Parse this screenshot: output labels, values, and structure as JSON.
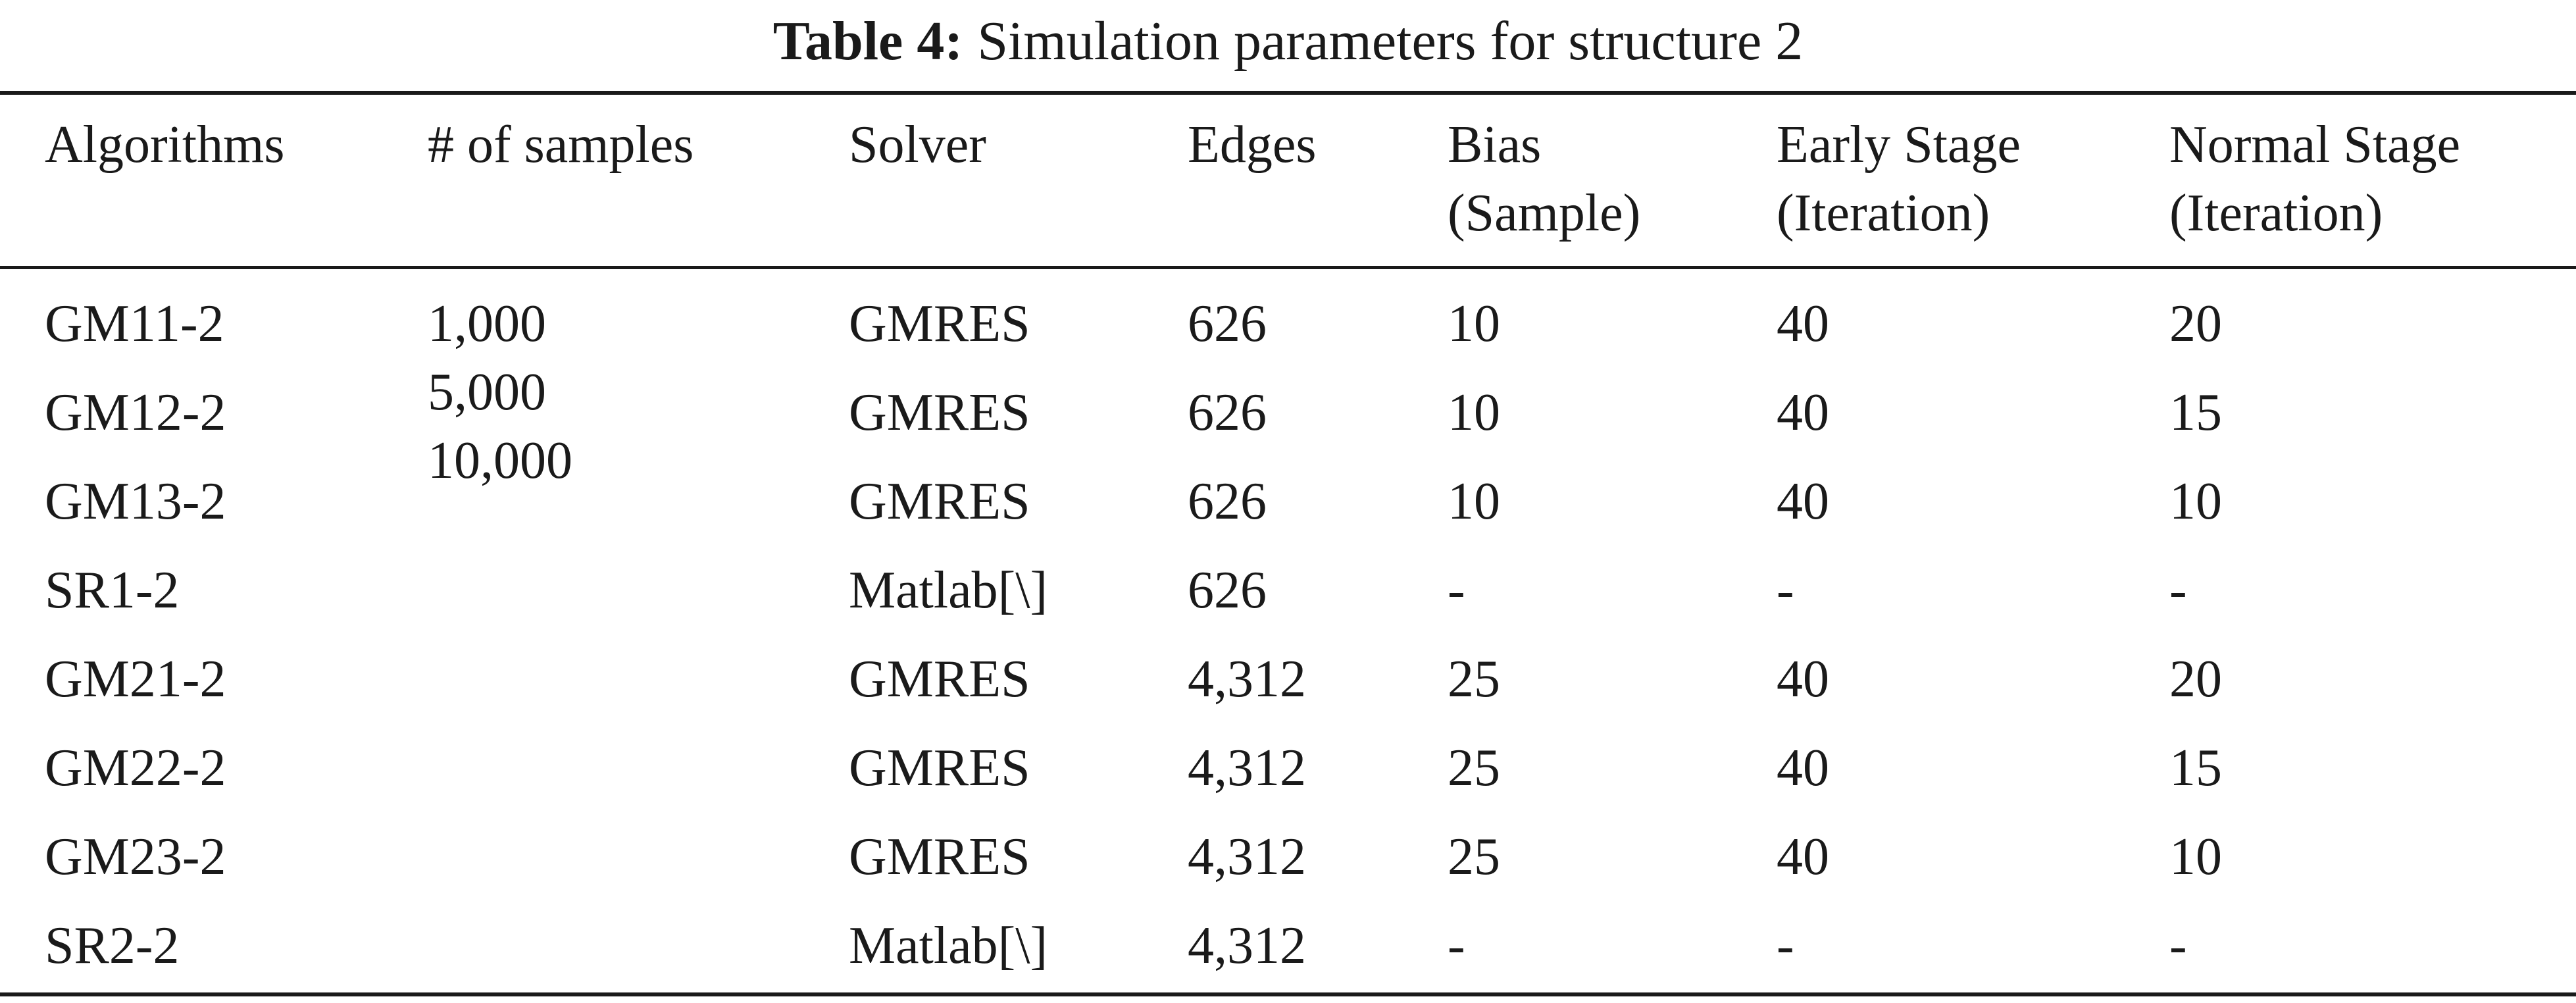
{
  "caption": {
    "label": "Table 4:",
    "title": "Simulation parameters for structure 2"
  },
  "table": {
    "headers": [
      [
        "Algorithms"
      ],
      [
        "# of samples"
      ],
      [
        "Solver"
      ],
      [
        "Edges"
      ],
      [
        "Bias",
        "(Sample)"
      ],
      [
        "Early Stage",
        "(Iteration)"
      ],
      [
        "Normal Stage",
        "(Iteration)"
      ]
    ],
    "samples": [
      "1,000",
      "5,000",
      "10,000"
    ],
    "rows": [
      {
        "algorithm": "GM11-2",
        "solver": "GMRES",
        "edges": "626",
        "bias": "10",
        "early": "40",
        "normal": "20"
      },
      {
        "algorithm": "GM12-2",
        "solver": "GMRES",
        "edges": "626",
        "bias": "10",
        "early": "40",
        "normal": "15"
      },
      {
        "algorithm": "GM13-2",
        "solver": "GMRES",
        "edges": "626",
        "bias": "10",
        "early": "40",
        "normal": "10"
      },
      {
        "algorithm": "SR1-2",
        "solver": "Matlab[\\]",
        "edges": "626",
        "bias": "-",
        "early": "-",
        "normal": "-"
      },
      {
        "algorithm": "GM21-2",
        "solver": "GMRES",
        "edges": "4,312",
        "bias": "25",
        "early": "40",
        "normal": "20"
      },
      {
        "algorithm": "GM22-2",
        "solver": "GMRES",
        "edges": "4,312",
        "bias": "25",
        "early": "40",
        "normal": "15"
      },
      {
        "algorithm": "GM23-2",
        "solver": "GMRES",
        "edges": "4,312",
        "bias": "25",
        "early": "40",
        "normal": "10"
      },
      {
        "algorithm": "SR2-2",
        "solver": "Matlab[\\]",
        "edges": "4,312",
        "bias": "-",
        "early": "-",
        "normal": "-"
      }
    ]
  }
}
